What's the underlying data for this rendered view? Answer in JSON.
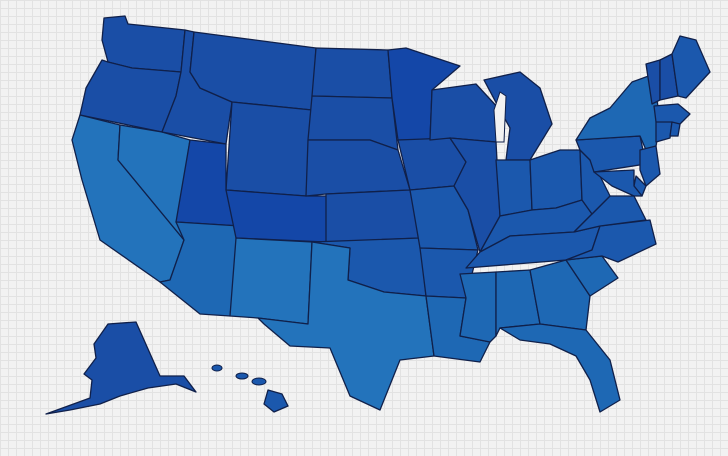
{
  "map": {
    "title": "",
    "colors": {
      "north": "#1a4ea6",
      "north_deep": "#1447a8",
      "mid": "#1b58ad",
      "south": "#1e68b4",
      "southwest": "#2373bb",
      "border": "#10204a"
    },
    "legend": "none",
    "states": [
      {
        "code": "WA",
        "fill_class": "north"
      },
      {
        "code": "OR",
        "fill_class": "north"
      },
      {
        "code": "CA",
        "fill_class": "southwest"
      },
      {
        "code": "NV",
        "fill_class": "southwest"
      },
      {
        "code": "ID",
        "fill_class": "north"
      },
      {
        "code": "MT",
        "fill_class": "north"
      },
      {
        "code": "WY",
        "fill_class": "north"
      },
      {
        "code": "UT",
        "fill_class": "north_deep"
      },
      {
        "code": "AZ",
        "fill_class": "south"
      },
      {
        "code": "CO",
        "fill_class": "north_deep"
      },
      {
        "code": "NM",
        "fill_class": "southwest"
      },
      {
        "code": "ND",
        "fill_class": "north"
      },
      {
        "code": "SD",
        "fill_class": "north"
      },
      {
        "code": "NE",
        "fill_class": "north"
      },
      {
        "code": "KS",
        "fill_class": "north"
      },
      {
        "code": "OK",
        "fill_class": "mid"
      },
      {
        "code": "TX",
        "fill_class": "southwest"
      },
      {
        "code": "MN",
        "fill_class": "north_deep"
      },
      {
        "code": "IA",
        "fill_class": "north"
      },
      {
        "code": "MO",
        "fill_class": "mid"
      },
      {
        "code": "AR",
        "fill_class": "mid"
      },
      {
        "code": "LA",
        "fill_class": "south"
      },
      {
        "code": "WI",
        "fill_class": "north"
      },
      {
        "code": "IL",
        "fill_class": "north"
      },
      {
        "code": "MI",
        "fill_class": "north"
      },
      {
        "code": "IN",
        "fill_class": "mid"
      },
      {
        "code": "OH",
        "fill_class": "mid"
      },
      {
        "code": "KY",
        "fill_class": "mid"
      },
      {
        "code": "TN",
        "fill_class": "mid"
      },
      {
        "code": "MS",
        "fill_class": "south"
      },
      {
        "code": "AL",
        "fill_class": "south"
      },
      {
        "code": "GA",
        "fill_class": "south"
      },
      {
        "code": "FL",
        "fill_class": "south"
      },
      {
        "code": "SC",
        "fill_class": "south"
      },
      {
        "code": "NC",
        "fill_class": "mid"
      },
      {
        "code": "VA",
        "fill_class": "mid"
      },
      {
        "code": "WV",
        "fill_class": "mid"
      },
      {
        "code": "PA",
        "fill_class": "mid"
      },
      {
        "code": "NY",
        "fill_class": "south"
      },
      {
        "code": "VT",
        "fill_class": "north"
      },
      {
        "code": "NH",
        "fill_class": "north"
      },
      {
        "code": "ME",
        "fill_class": "mid"
      },
      {
        "code": "MA",
        "fill_class": "mid"
      },
      {
        "code": "CT",
        "fill_class": "mid"
      },
      {
        "code": "RI",
        "fill_class": "mid"
      },
      {
        "code": "NJ",
        "fill_class": "mid"
      },
      {
        "code": "DE",
        "fill_class": "mid"
      },
      {
        "code": "MD",
        "fill_class": "mid"
      },
      {
        "code": "AK",
        "fill_class": "north"
      },
      {
        "code": "HI",
        "fill_class": "mid"
      }
    ]
  }
}
